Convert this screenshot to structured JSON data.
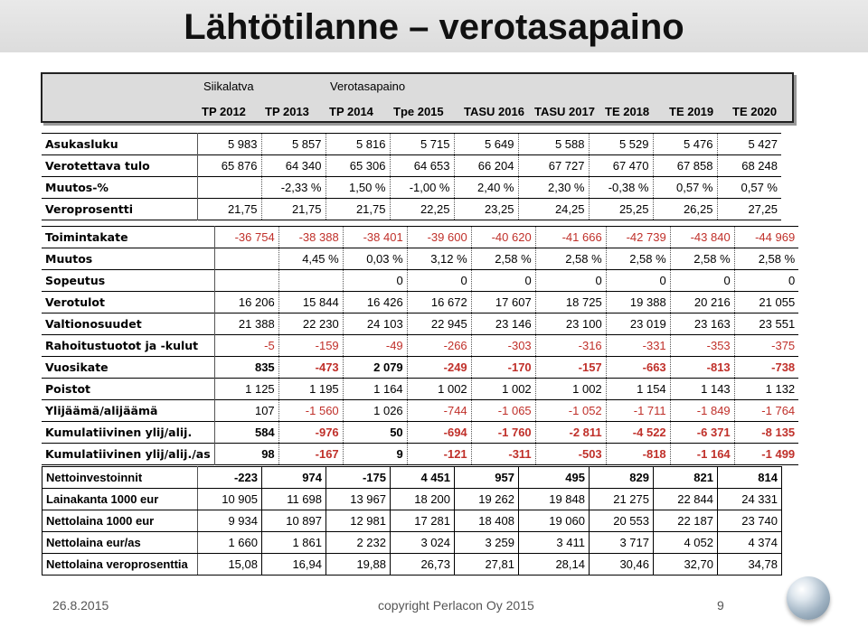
{
  "title": "Lähtötilanne – verotasapaino",
  "header": {
    "municipality": "Siikalatva",
    "subtitle": "Verotasapaino",
    "years": [
      "TP 2012",
      "TP 2013",
      "TP 2014",
      "Tpe 2015",
      "TASU 2016",
      "TASU 2017",
      "TE 2018",
      "TE 2019",
      "TE 2020"
    ]
  },
  "section1": [
    {
      "label": "Asukasluku",
      "values": [
        "5 983",
        "5 857",
        "5 816",
        "5 715",
        "5 649",
        "5 588",
        "5 529",
        "5 476",
        "5 427"
      ]
    },
    {
      "label": "Verotettava tulo",
      "values": [
        "65 876",
        "64 340",
        "65 306",
        "64 653",
        "66 204",
        "67 727",
        "67 470",
        "67 858",
        "68 248"
      ]
    },
    {
      "label": "Muutos-%",
      "values": [
        "",
        "-2,33 %",
        "1,50 %",
        "-1,00 %",
        "2,40 %",
        "2,30 %",
        "-0,38 %",
        "0,57 %",
        "0,57 %"
      ]
    },
    {
      "label": "Veroprosentti",
      "values": [
        "21,75",
        "21,75",
        "21,75",
        "22,25",
        "23,25",
        "24,25",
        "25,25",
        "26,25",
        "27,25"
      ]
    }
  ],
  "section2": [
    {
      "label": "Toimintakate",
      "values": [
        "-36 754",
        "-38 388",
        "-38 401",
        "-39 600",
        "-40 620",
        "-41 666",
        "-42 739",
        "-43 840",
        "-44 969"
      ]
    },
    {
      "label": "Muutos",
      "values": [
        "",
        "4,45 %",
        "0,03 %",
        "3,12 %",
        "2,58 %",
        "2,58 %",
        "2,58 %",
        "2,58 %",
        "2,58 %"
      ]
    },
    {
      "label": "Sopeutus",
      "values": [
        "",
        "",
        "0",
        "0",
        "0",
        "0",
        "0",
        "0",
        "0"
      ]
    },
    {
      "label": "Verotulot",
      "values": [
        "16 206",
        "15 844",
        "16 426",
        "16 672",
        "17 607",
        "18 725",
        "19 388",
        "20 216",
        "21 055"
      ]
    },
    {
      "label": "Valtionosuudet",
      "values": [
        "21 388",
        "22 230",
        "24 103",
        "22 945",
        "23 146",
        "23 100",
        "23 019",
        "23 163",
        "23 551"
      ]
    },
    {
      "label": "Rahoitustuotot ja -kulut",
      "values": [
        "-5",
        "-159",
        "-49",
        "-266",
        "-303",
        "-316",
        "-331",
        "-353",
        "-375"
      ]
    },
    {
      "label": "Vuosikate",
      "values": [
        "835",
        "-473",
        "2 079",
        "-249",
        "-170",
        "-157",
        "-663",
        "-813",
        "-738"
      ]
    },
    {
      "label": "Poistot",
      "values": [
        "1 125",
        "1 195",
        "1 164",
        "1 002",
        "1 002",
        "1 002",
        "1 154",
        "1 143",
        "1 132"
      ]
    },
    {
      "label": "Ylijäämä/alijäämä",
      "values": [
        "107",
        "-1 560",
        "1 026",
        "-744",
        "-1 065",
        "-1 052",
        "-1 711",
        "-1 849",
        "-1 764"
      ]
    },
    {
      "label": "Kumulatiivinen ylij/alij.",
      "values": [
        "584",
        "-976",
        "50",
        "-694",
        "-1 760",
        "-2 811",
        "-4 522",
        "-6 371",
        "-8 135"
      ]
    },
    {
      "label": "Kumulatiivinen ylij/alij./as",
      "values": [
        "98",
        "-167",
        "9",
        "-121",
        "-311",
        "-503",
        "-818",
        "-1 164",
        "-1 499"
      ]
    }
  ],
  "section3": [
    {
      "label": "Nettoinvestoinnit",
      "values": [
        "-223",
        "974",
        "-175",
        "4 451",
        "957",
        "495",
        "829",
        "821",
        "814"
      ]
    },
    {
      "label": "Lainakanta 1000 eur",
      "values": [
        "10 905",
        "11 698",
        "13 967",
        "18 200",
        "19 262",
        "19 848",
        "21 275",
        "22 844",
        "24 331"
      ]
    },
    {
      "label": "Nettolaina 1000 eur",
      "values": [
        "9 934",
        "10 897",
        "12 981",
        "17 281",
        "18 408",
        "19 060",
        "20 553",
        "22 187",
        "23 740"
      ]
    },
    {
      "label": "Nettolaina eur/as",
      "values": [
        "1 660",
        "1 861",
        "2 232",
        "3 024",
        "3 259",
        "3 411",
        "3 717",
        "4 052",
        "4 374"
      ]
    },
    {
      "label": "Nettolaina veroprosenttia",
      "values": [
        "15,08",
        "16,94",
        "19,88",
        "26,73",
        "27,81",
        "28,14",
        "30,46",
        "32,70",
        "34,78"
      ]
    }
  ],
  "footer": {
    "date": "26.8.2015",
    "copyright": "copyright Perlacon Oy 2015",
    "page": "9"
  },
  "colors": {
    "negative": "#c0302a",
    "header_bg": "#dcdcdc"
  },
  "icons": {
    "logo": "orb-logo-icon"
  }
}
